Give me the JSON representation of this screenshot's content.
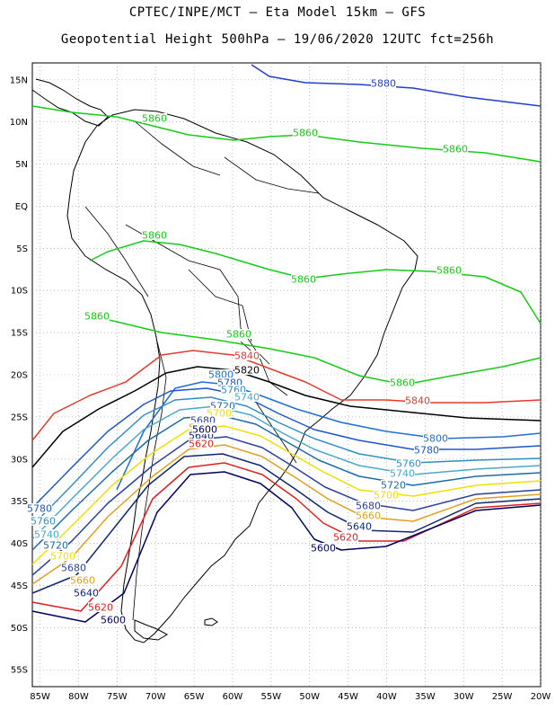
{
  "header": {
    "line1": "CPTEC/INPE/MCT –  Eta Model 15km – GFS",
    "line2": "Geopotential Height 500hPa – 19/06/2020 12UTC fct=256h"
  },
  "map": {
    "lat_ticks": [
      "15N",
      "10N",
      "5N",
      "EQ",
      "5S",
      "10S",
      "15S",
      "20S",
      "25S",
      "30S",
      "35S",
      "40S",
      "45S",
      "50S",
      "55S"
    ],
    "lon_ticks": [
      "85W",
      "80W",
      "75W",
      "70W",
      "65W",
      "60W",
      "55W",
      "50W",
      "45W",
      "40W",
      "35W",
      "30W",
      "25W",
      "20W"
    ],
    "contours": [
      {
        "label": "5880",
        "color": "#1f3fcf"
      },
      {
        "label": "5860",
        "color": "#14cc14"
      },
      {
        "label": "5840",
        "color": "#e83a2a"
      },
      {
        "label": "5820",
        "color": "#000000"
      },
      {
        "label": "5800",
        "color": "#1f6fd4"
      },
      {
        "label": "5780",
        "color": "#1f55c8"
      },
      {
        "label": "5760",
        "color": "#2f8fc4"
      },
      {
        "label": "5740",
        "color": "#4aa8cc"
      },
      {
        "label": "5720",
        "color": "#1d6aa8"
      },
      {
        "label": "5700",
        "color": "#f0e000"
      },
      {
        "label": "5680",
        "color": "#2b3fa0"
      },
      {
        "label": "5660",
        "color": "#e0a020"
      },
      {
        "label": "5640",
        "color": "#102870"
      },
      {
        "label": "5620",
        "color": "#e02020"
      },
      {
        "label": "5600",
        "color": "#000060"
      }
    ]
  }
}
